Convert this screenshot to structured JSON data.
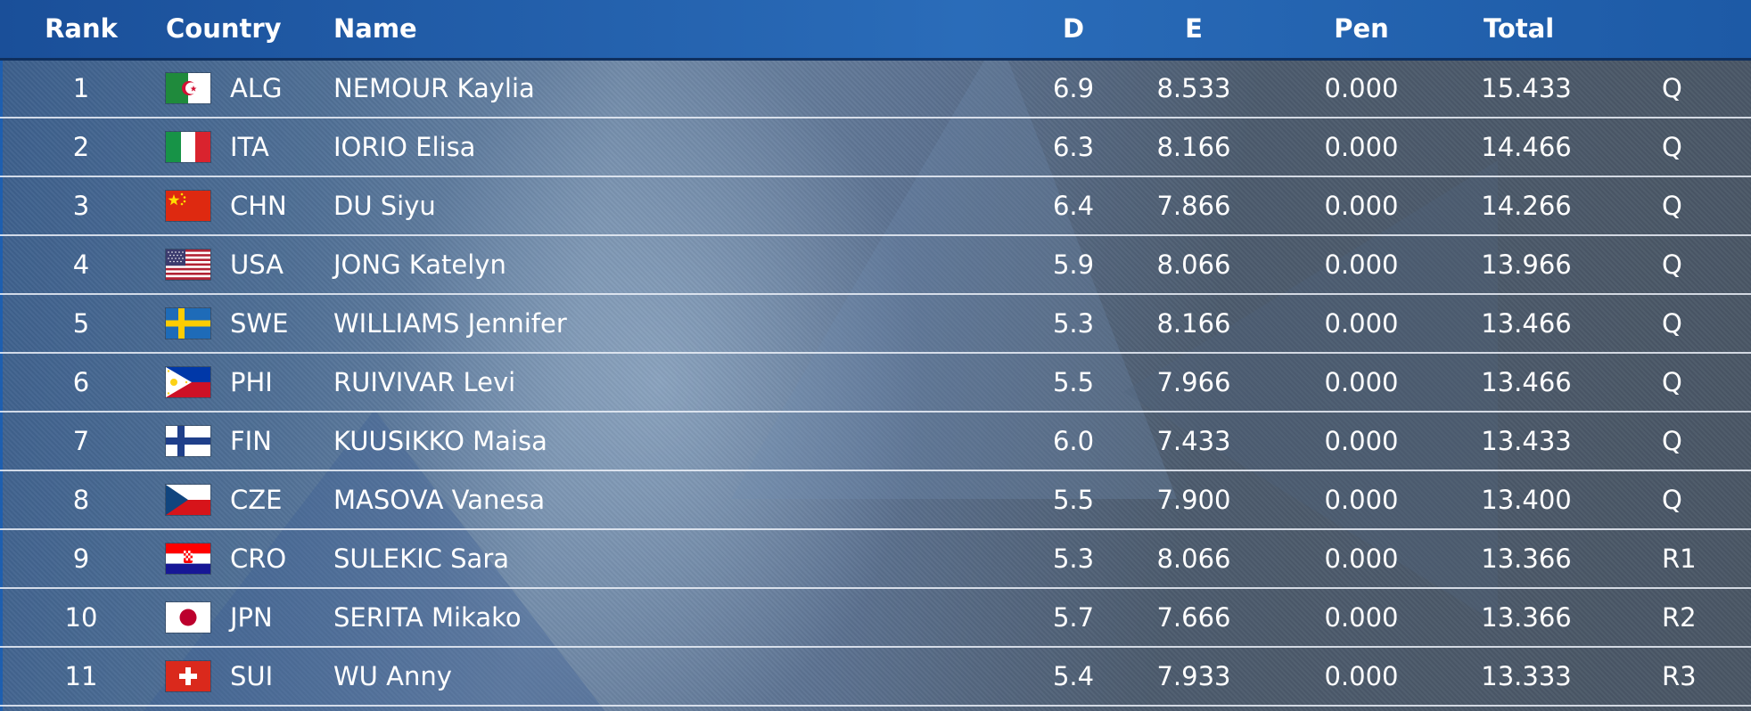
{
  "headers": {
    "rank": "Rank",
    "country": "Country",
    "name": "Name",
    "d": "D",
    "e": "E",
    "pen": "Pen",
    "total": "Total",
    "qual": ""
  },
  "rows": [
    {
      "rank": "1",
      "code": "ALG",
      "flag": "algeria-flag",
      "name": "NEMOUR Kaylia",
      "d": "6.9",
      "e": "8.533",
      "pen": "0.000",
      "total": "15.433",
      "q": "Q"
    },
    {
      "rank": "2",
      "code": "ITA",
      "flag": "italy-flag",
      "name": "IORIO Elisa",
      "d": "6.3",
      "e": "8.166",
      "pen": "0.000",
      "total": "14.466",
      "q": "Q"
    },
    {
      "rank": "3",
      "code": "CHN",
      "flag": "china-flag",
      "name": "DU Siyu",
      "d": "6.4",
      "e": "7.866",
      "pen": "0.000",
      "total": "14.266",
      "q": "Q"
    },
    {
      "rank": "4",
      "code": "USA",
      "flag": "usa-flag",
      "name": "JONG Katelyn",
      "d": "5.9",
      "e": "8.066",
      "pen": "0.000",
      "total": "13.966",
      "q": "Q"
    },
    {
      "rank": "5",
      "code": "SWE",
      "flag": "sweden-flag",
      "name": "WILLIAMS Jennifer",
      "d": "5.3",
      "e": "8.166",
      "pen": "0.000",
      "total": "13.466",
      "q": "Q"
    },
    {
      "rank": "6",
      "code": "PHI",
      "flag": "philippines-flag",
      "name": "RUIVIVAR Levi",
      "d": "5.5",
      "e": "7.966",
      "pen": "0.000",
      "total": "13.466",
      "q": "Q"
    },
    {
      "rank": "7",
      "code": "FIN",
      "flag": "finland-flag",
      "name": "KUUSIKKO Maisa",
      "d": "6.0",
      "e": "7.433",
      "pen": "0.000",
      "total": "13.433",
      "q": "Q"
    },
    {
      "rank": "8",
      "code": "CZE",
      "flag": "czechia-flag",
      "name": "MASOVA Vanesa",
      "d": "5.5",
      "e": "7.900",
      "pen": "0.000",
      "total": "13.400",
      "q": "Q"
    },
    {
      "rank": "9",
      "code": "CRO",
      "flag": "croatia-flag",
      "name": "SULEKIC Sara",
      "d": "5.3",
      "e": "8.066",
      "pen": "0.000",
      "total": "13.366",
      "q": "R1"
    },
    {
      "rank": "10",
      "code": "JPN",
      "flag": "japan-flag",
      "name": "SERITA Mikako",
      "d": "5.7",
      "e": "7.666",
      "pen": "0.000",
      "total": "13.366",
      "q": "R2"
    },
    {
      "rank": "11",
      "code": "SUI",
      "flag": "switzerland-flag",
      "name": "WU Anny",
      "d": "5.4",
      "e": "7.933",
      "pen": "0.000",
      "total": "13.333",
      "q": "R3"
    }
  ]
}
